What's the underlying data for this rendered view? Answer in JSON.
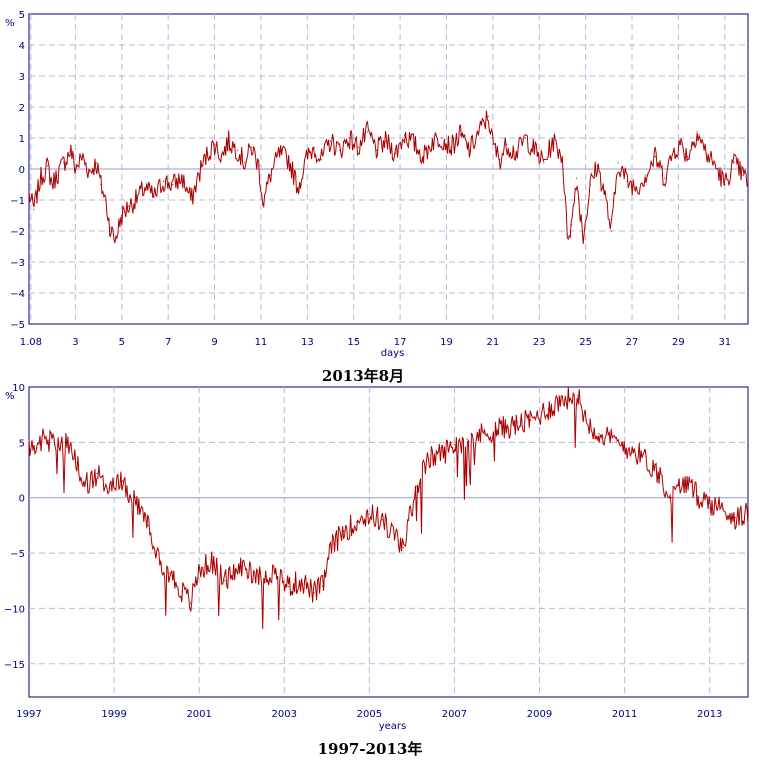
{
  "chart_data": [
    {
      "type": "line",
      "caption": "2013年8月",
      "xlabel": "days",
      "ylabel": "%",
      "ylim": [
        -5,
        5
      ],
      "xlim": [
        1,
        32
      ],
      "grid": true,
      "yticks": [
        5,
        4,
        3,
        2,
        1,
        0,
        -1,
        -2,
        -3,
        -4,
        -5
      ],
      "yticklabels": [
        "5",
        "4",
        "3",
        "2",
        "1",
        "0",
        "−1",
        "−2",
        "−3",
        "−4",
        "−5"
      ],
      "xticks": [
        1.08,
        3,
        5,
        7,
        9,
        11,
        13,
        15,
        17,
        19,
        21,
        23,
        25,
        27,
        29,
        31
      ],
      "xticklabels": [
        "1.08",
        "3",
        "5",
        "7",
        "9",
        "11",
        "13",
        "15",
        "17",
        "19",
        "21",
        "23",
        "25",
        "27",
        "29",
        "31"
      ],
      "color": "#aa0000",
      "series": [
        {
          "x": [
            1.0,
            1.2,
            1.5,
            1.8,
            2.0,
            2.2,
            2.5,
            2.8,
            3.0,
            3.3,
            3.6,
            3.9,
            4.1,
            4.3,
            4.5,
            4.7,
            5.0,
            5.3,
            5.6,
            6.0,
            6.4,
            6.8,
            7.2,
            7.6,
            8.0,
            8.4,
            8.7,
            9.0,
            9.3,
            9.6,
            10.0,
            10.3,
            10.6,
            10.9,
            11.1,
            11.4,
            11.8,
            12.2,
            12.6,
            13.0,
            13.3,
            13.6,
            14.0,
            14.4,
            14.8,
            15.2,
            15.6,
            16.0,
            16.4,
            16.8,
            17.2,
            17.6,
            18.0,
            18.4,
            18.8,
            19.2,
            19.6,
            20.0,
            20.4,
            20.8,
            21.0,
            21.3,
            21.6,
            22.0,
            22.4,
            22.8,
            23.2,
            23.6,
            24.0,
            24.2,
            24.4,
            24.6,
            24.9,
            25.2,
            25.5,
            25.8,
            26.1,
            26.4,
            26.8,
            27.2,
            27.6,
            28.0,
            28.4,
            28.8,
            29.1,
            29.4,
            29.8,
            30.2,
            30.6,
            31.0,
            31.4,
            31.8,
            32.0
          ],
          "y": [
            -0.8,
            -1.3,
            -0.3,
            0.1,
            -0.5,
            -0.2,
            0.2,
            0.6,
            0.0,
            0.4,
            -0.1,
            0.2,
            -0.5,
            -1.0,
            -1.9,
            -2.3,
            -1.5,
            -1.2,
            -1.0,
            -0.6,
            -0.9,
            -0.4,
            -0.5,
            -0.3,
            -1.0,
            0.0,
            0.5,
            0.8,
            0.4,
            0.9,
            0.6,
            0.2,
            0.7,
            0.1,
            -1.1,
            -0.2,
            0.5,
            0.3,
            -0.6,
            0.4,
            0.7,
            0.3,
            0.9,
            0.6,
            1.0,
            0.7,
            1.2,
            0.6,
            0.9,
            0.5,
            1.1,
            0.8,
            0.4,
            0.9,
            1.0,
            0.7,
            1.1,
            0.6,
            1.2,
            1.7,
            0.8,
            0.3,
            0.8,
            0.5,
            1.0,
            0.6,
            0.2,
            0.9,
            0.4,
            -2.1,
            -1.8,
            -0.3,
            -2.2,
            -0.5,
            0.1,
            -0.7,
            -2.0,
            0.2,
            -0.4,
            -0.6,
            -0.2,
            0.4,
            -0.3,
            0.6,
            0.8,
            0.4,
            1.2,
            0.5,
            0.1,
            -0.5,
            0.2,
            -0.2,
            -0.4
          ]
        }
      ]
    },
    {
      "type": "line",
      "caption": "1997-2013年",
      "xlabel": "years",
      "ylabel": "%",
      "ylim": [
        -18,
        10
      ],
      "xlim": [
        1997,
        2013.9
      ],
      "grid": true,
      "yticks": [
        10,
        5,
        0,
        -5,
        -10,
        -15
      ],
      "yticklabels": [
        "10",
        "5",
        "0",
        "−5",
        "−10",
        "−15"
      ],
      "xticks": [
        1997,
        1999,
        2001,
        2003,
        2005,
        2007,
        2009,
        2011,
        2013
      ],
      "xticklabels": [
        "1997",
        "1999",
        "2001",
        "2003",
        "2005",
        "2007",
        "2009",
        "2011",
        "2013"
      ],
      "color": "#aa0000",
      "series": [
        {
          "x": [
            1997.0,
            1997.3,
            1997.6,
            1997.9,
            1998.1,
            1998.3,
            1998.6,
            1998.9,
            1999.2,
            1999.5,
            1999.8,
            2000.0,
            2000.3,
            2000.6,
            2000.8,
            2001.0,
            2001.3,
            2001.6,
            2002.0,
            2002.4,
            2002.8,
            2003.1,
            2003.4,
            2003.7,
            2003.9,
            2004.1,
            2004.4,
            2004.7,
            2005.0,
            2005.3,
            2005.6,
            2005.8,
            2006.1,
            2006.4,
            2006.8,
            2007.0,
            2007.3,
            2007.7,
            2008.0,
            2008.4,
            2008.8,
            2009.2,
            2009.6,
            2009.9,
            2010.1,
            2010.4,
            2010.8,
            2011.1,
            2011.4,
            2011.8,
            2012.1,
            2012.4,
            2012.7,
            2013.0,
            2013.3,
            2013.6,
            2013.9
          ],
          "y": [
            4.5,
            5.2,
            4.8,
            4.9,
            3.2,
            1.0,
            2.2,
            0.8,
            1.5,
            -0.5,
            -2.5,
            -5.2,
            -6.8,
            -8.5,
            -9.5,
            -6.5,
            -5.8,
            -7.5,
            -6.2,
            -7.0,
            -6.8,
            -8.0,
            -7.5,
            -8.6,
            -8.0,
            -4.5,
            -3.0,
            -2.2,
            -1.5,
            -2.0,
            -3.5,
            -4.5,
            1.0,
            3.5,
            4.2,
            4.8,
            5.3,
            5.8,
            6.2,
            6.5,
            7.0,
            8.0,
            9.0,
            9.2,
            7.0,
            5.8,
            5.0,
            4.5,
            3.8,
            2.2,
            0.0,
            1.5,
            0.2,
            -0.5,
            -1.0,
            -1.8,
            -1.5
          ]
        }
      ]
    }
  ]
}
